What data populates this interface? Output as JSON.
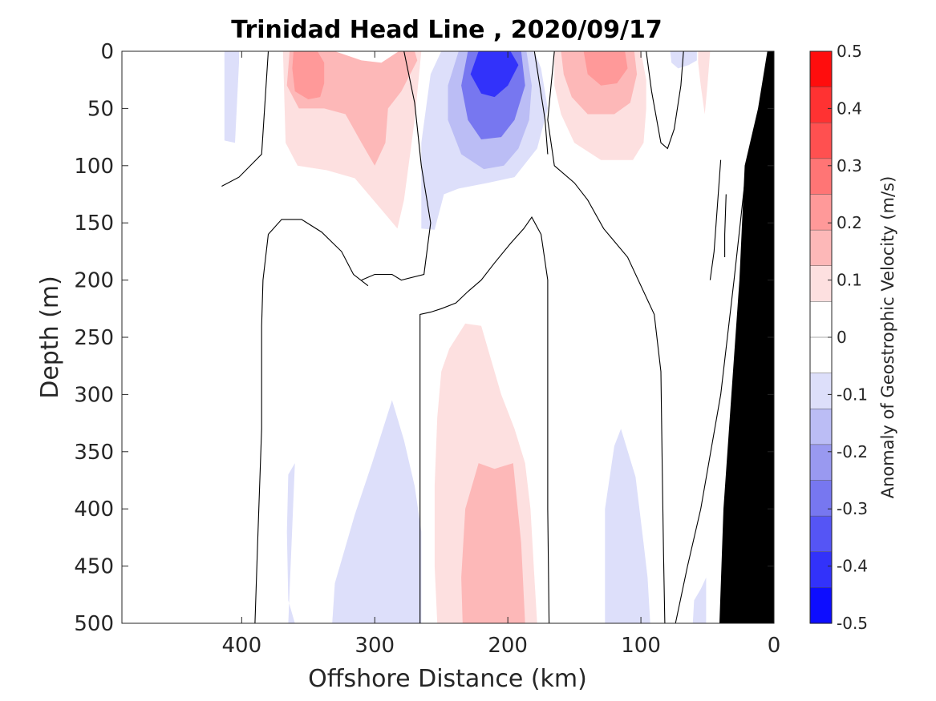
{
  "chart_data": {
    "type": "heatmap",
    "title": "Trinidad Head Line , 2020/09/17",
    "xlabel": "Offshore Distance (km)",
    "ylabel": "Depth (m)",
    "xlim": [
      490,
      0
    ],
    "ylim": [
      0,
      500
    ],
    "x_ticks": [
      400,
      300,
      200,
      100,
      0
    ],
    "y_ticks": [
      0,
      50,
      100,
      150,
      200,
      250,
      300,
      350,
      400,
      450,
      500
    ],
    "y_reversed": true,
    "x_reversed": true,
    "grid": false,
    "colorbar": {
      "label": "Anomaly of Geostrophic Velocity (m/s)",
      "range": [
        -0.5,
        0.5
      ],
      "ticks": [
        0.5,
        0.4,
        0.3,
        0.2,
        0.1,
        0,
        -0.1,
        -0.2,
        -0.3,
        -0.4,
        -0.5
      ],
      "tick_labels": [
        "0.5",
        "0.4",
        "0.3",
        "0.2",
        "0.1",
        "0",
        "-0.1",
        "-0.2",
        "-0.3",
        "-0.4",
        "-0.5"
      ],
      "levels": [
        -0.5,
        -0.45,
        -0.4,
        -0.35,
        -0.3,
        -0.25,
        -0.2,
        -0.15,
        -0.1,
        -0.05,
        0.05,
        0.1,
        0.15,
        0.2,
        0.25,
        0.3,
        0.35,
        0.4,
        0.45,
        0.5
      ],
      "colors_high_to_low": [
        "#ff0d0d",
        "#ff3232",
        "#ff5050",
        "#ff7575",
        "#ff9999",
        "#fdb8b8",
        "#fde0e0",
        "#ffffff",
        "#ffffff",
        "#dddffa",
        "#bbbdf5",
        "#9999f0",
        "#7777f0",
        "#5555f5",
        "#3232fa",
        "#0d0dff"
      ]
    },
    "regions": [
      {
        "value": -0.08,
        "points": [
          [
            413,
            0
          ],
          [
            402,
            0
          ],
          [
            402,
            10
          ],
          [
            405,
            80
          ],
          [
            413,
            78
          ]
        ]
      },
      {
        "value": 0.08,
        "points": [
          [
            369,
            0
          ],
          [
            330,
            0
          ],
          [
            314,
            8
          ],
          [
            301,
            18
          ],
          [
            289,
            13
          ],
          [
            276,
            0
          ],
          [
            265,
            0
          ],
          [
            270,
            60
          ],
          [
            278,
            130
          ],
          [
            283,
            155
          ],
          [
            296,
            137
          ],
          [
            315,
            111
          ],
          [
            336,
            104
          ],
          [
            358,
            100
          ],
          [
            367,
            80
          ]
        ]
      },
      {
        "value": 0.13,
        "points": [
          [
            268,
            8
          ],
          [
            280,
            35
          ],
          [
            290,
            50
          ],
          [
            292,
            80
          ],
          [
            300,
            100
          ],
          [
            310,
            80
          ],
          [
            322,
            55
          ],
          [
            338,
            50
          ],
          [
            357,
            50
          ],
          [
            366,
            30
          ],
          [
            364,
            0
          ],
          [
            330,
            0
          ],
          [
            310,
            8
          ],
          [
            295,
            10
          ],
          [
            282,
            0
          ],
          [
            270,
            0
          ]
        ]
      },
      {
        "value": 0.22,
        "points": [
          [
            361,
            0
          ],
          [
            343,
            0
          ],
          [
            338,
            10
          ],
          [
            338,
            28
          ],
          [
            341,
            40
          ],
          [
            350,
            42
          ],
          [
            360,
            35
          ],
          [
            362,
            15
          ]
        ]
      },
      {
        "value": -0.08,
        "points": [
          [
            240,
            0
          ],
          [
            218,
            0
          ],
          [
            180,
            0
          ],
          [
            175,
            15
          ],
          [
            170,
            50
          ],
          [
            178,
            85
          ],
          [
            195,
            110
          ],
          [
            215,
            115
          ],
          [
            237,
            120
          ],
          [
            248,
            125
          ],
          [
            255,
            156
          ],
          [
            265,
            155
          ],
          [
            265,
            80
          ],
          [
            258,
            20
          ],
          [
            250,
            0
          ]
        ]
      },
      {
        "value": -0.16,
        "points": [
          [
            237,
            0
          ],
          [
            218,
            0
          ],
          [
            186,
            0
          ],
          [
            182,
            30
          ],
          [
            184,
            60
          ],
          [
            192,
            85
          ],
          [
            203,
            100
          ],
          [
            218,
            103
          ],
          [
            235,
            90
          ],
          [
            245,
            60
          ],
          [
            245,
            30
          ]
        ]
      },
      {
        "value": -0.26,
        "points": [
          [
            230,
            0
          ],
          [
            190,
            0
          ],
          [
            187,
            30
          ],
          [
            195,
            60
          ],
          [
            205,
            75
          ],
          [
            220,
            77
          ],
          [
            230,
            60
          ],
          [
            235,
            30
          ]
        ]
      },
      {
        "value": -0.38,
        "points": [
          [
            222,
            0
          ],
          [
            198,
            0
          ],
          [
            192,
            12
          ],
          [
            200,
            30
          ],
          [
            210,
            40
          ],
          [
            220,
            37
          ],
          [
            228,
            20
          ]
        ]
      },
      {
        "value": 0.08,
        "points": [
          [
            165,
            0
          ],
          [
            100,
            0
          ],
          [
            96,
            25
          ],
          [
            96,
            50
          ],
          [
            98,
            80
          ],
          [
            106,
            95
          ],
          [
            130,
            95
          ],
          [
            150,
            80
          ],
          [
            160,
            55
          ],
          [
            165,
            30
          ]
        ]
      },
      {
        "value": 0.16,
        "points": [
          [
            160,
            0
          ],
          [
            105,
            0
          ],
          [
            103,
            20
          ],
          [
            108,
            45
          ],
          [
            120,
            55
          ],
          [
            140,
            55
          ],
          [
            152,
            40
          ],
          [
            158,
            20
          ]
        ]
      },
      {
        "value": 0.24,
        "points": [
          [
            143,
            0
          ],
          [
            112,
            0
          ],
          [
            110,
            15
          ],
          [
            118,
            28
          ],
          [
            130,
            30
          ],
          [
            140,
            20
          ]
        ]
      },
      {
        "value": -0.08,
        "points": [
          [
            78,
            0
          ],
          [
            58,
            0
          ],
          [
            58,
            8
          ],
          [
            64,
            12
          ],
          [
            72,
            15
          ],
          [
            77,
            10
          ]
        ]
      },
      {
        "value": 0.08,
        "points": [
          [
            57,
            0
          ],
          [
            48,
            0
          ],
          [
            50,
            30
          ],
          [
            52,
            55
          ],
          [
            55,
            30
          ],
          [
            57,
            10
          ]
        ]
      },
      {
        "value": -0.08,
        "points": [
          [
            365,
            500
          ],
          [
            332,
            500
          ],
          [
            330,
            465
          ],
          [
            325,
            445
          ],
          [
            315,
            405
          ],
          [
            302,
            360
          ],
          [
            287,
            305
          ],
          [
            278,
            340
          ],
          [
            270,
            380
          ],
          [
            265,
            420
          ],
          [
            265,
            500
          ],
          [
            360,
            500
          ],
          [
            365,
            480
          ],
          [
            366,
            420
          ],
          [
            365,
            370
          ],
          [
            360,
            360
          ]
        ]
      },
      {
        "value": 0.08,
        "points": [
          [
            253,
            500
          ],
          [
            178,
            500
          ],
          [
            180,
            460
          ],
          [
            183,
            400
          ],
          [
            187,
            360
          ],
          [
            195,
            330
          ],
          [
            205,
            300
          ],
          [
            220,
            240
          ],
          [
            232,
            238
          ],
          [
            244,
            260
          ],
          [
            250,
            280
          ],
          [
            253,
            320
          ],
          [
            255,
            380
          ],
          [
            255,
            450
          ]
        ]
      },
      {
        "value": 0.16,
        "points": [
          [
            234,
            500
          ],
          [
            187,
            500
          ],
          [
            190,
            430
          ],
          [
            196,
            360
          ],
          [
            210,
            365
          ],
          [
            222,
            360
          ],
          [
            232,
            400
          ],
          [
            235,
            460
          ]
        ]
      },
      {
        "value": -0.08,
        "points": [
          [
            127,
            500
          ],
          [
            93,
            500
          ],
          [
            95,
            460
          ],
          [
            98,
            430
          ],
          [
            104,
            372
          ],
          [
            115,
            330
          ],
          [
            120,
            345
          ],
          [
            127,
            400
          ]
        ]
      },
      {
        "value": -0.08,
        "points": [
          [
            61,
            500
          ],
          [
            51,
            500
          ],
          [
            51,
            460
          ],
          [
            55,
            470
          ],
          [
            60,
            480
          ]
        ]
      }
    ],
    "zero_contours": [
      [
        [
          415,
          118
        ],
        [
          402,
          110
        ],
        [
          385,
          90
        ],
        [
          380,
          0
        ]
      ],
      [
        [
          310,
          200
        ],
        [
          300,
          195
        ],
        [
          287,
          195
        ],
        [
          280,
          200
        ],
        [
          263,
          195
        ],
        [
          258,
          150
        ],
        [
          265,
          100
        ],
        [
          270,
          45
        ],
        [
          278,
          0
        ]
      ],
      [
        [
          390,
          500
        ],
        [
          388,
          430
        ],
        [
          385,
          330
        ],
        [
          385,
          240
        ],
        [
          384,
          200
        ],
        [
          380,
          160
        ],
        [
          370,
          147
        ],
        [
          355,
          147
        ],
        [
          340,
          158
        ],
        [
          325,
          175
        ],
        [
          316,
          195
        ],
        [
          305,
          205
        ]
      ],
      [
        [
          266,
          500
        ],
        [
          266,
          230
        ],
        [
          258,
          228
        ],
        [
          250,
          225
        ],
        [
          239,
          220
        ],
        [
          230,
          210
        ],
        [
          220,
          200
        ],
        [
          210,
          185
        ],
        [
          198,
          168
        ],
        [
          188,
          155
        ],
        [
          182,
          145
        ],
        [
          175,
          160
        ],
        [
          170,
          200
        ],
        [
          170,
          300
        ],
        [
          170,
          400
        ],
        [
          169,
          500
        ]
      ],
      [
        [
          180,
          0
        ],
        [
          176,
          30
        ],
        [
          172,
          60
        ],
        [
          170,
          90
        ]
      ],
      [
        [
          165,
          0
        ],
        [
          170,
          60
        ],
        [
          165,
          100
        ],
        [
          150,
          115
        ],
        [
          140,
          130
        ],
        [
          128,
          155
        ],
        [
          110,
          180
        ],
        [
          90,
          230
        ],
        [
          85,
          280
        ],
        [
          84,
          360
        ],
        [
          83,
          440
        ],
        [
          82,
          500
        ]
      ],
      [
        [
          96,
          0
        ],
        [
          92,
          35
        ],
        [
          85,
          80
        ],
        [
          80,
          85
        ],
        [
          75,
          68
        ],
        [
          70,
          30
        ],
        [
          68,
          0
        ]
      ],
      [
        [
          40,
          95
        ],
        [
          45,
          175
        ],
        [
          48,
          200
        ]
      ],
      [
        [
          22,
          115
        ],
        [
          30,
          200
        ],
        [
          40,
          300
        ],
        [
          55,
          400
        ],
        [
          65,
          450
        ],
        [
          74,
          500
        ]
      ],
      [
        [
          36,
          125
        ],
        [
          37,
          160
        ],
        [
          37,
          180
        ]
      ],
      [
        [
          35,
          445
        ],
        [
          36,
          480
        ]
      ]
    ],
    "bathymetry": [
      [
        0,
        0
      ],
      [
        5,
        0
      ],
      [
        12,
        50
      ],
      [
        22,
        100
      ],
      [
        26,
        200
      ],
      [
        32,
        300
      ],
      [
        38,
        400
      ],
      [
        41,
        500
      ],
      [
        0,
        500
      ]
    ]
  }
}
